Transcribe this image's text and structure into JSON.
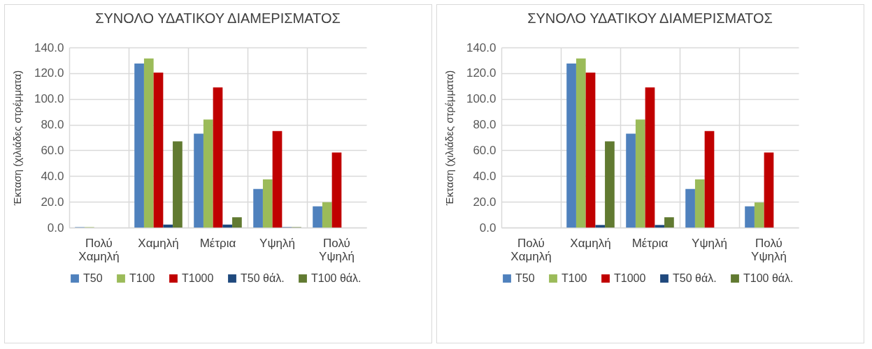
{
  "chart_data": [
    {
      "type": "bar",
      "title": "ΣΥΝΟΛΟ ΥΔΑΤΙΚΟΥ ΔΙΑΜΕΡΙΣΜΑΤΟΣ",
      "ylabel": "Έκταση (χιλιάδες στρέμματα)",
      "categories": [
        "Πολύ Χαμηλή",
        "Χαμηλή",
        "Μέτρια",
        "Υψηλή",
        "Πολύ Υψηλή"
      ],
      "series": [
        {
          "name": "T50",
          "color": "#4f81bd",
          "values": [
            0.3,
            127.5,
            73,
            30,
            16.5
          ]
        },
        {
          "name": "T100",
          "color": "#9bbb59",
          "values": [
            0.3,
            131.5,
            84,
            37.5,
            19.7
          ]
        },
        {
          "name": "T1000",
          "color": "#c00000",
          "values": [
            0,
            120.5,
            109,
            75,
            58.3
          ]
        },
        {
          "name": "T50 θάλ.",
          "color": "#1f497d",
          "values": [
            0,
            2.3,
            2.3,
            0.3,
            0
          ]
        },
        {
          "name": "T100 θάλ.",
          "color": "#617a31",
          "values": [
            0,
            67,
            8,
            0.3,
            0
          ]
        }
      ],
      "ylim": [
        0,
        140
      ],
      "yticks": [
        {
          "value": 0,
          "label": "0.0"
        },
        {
          "value": 20,
          "label": "20.0"
        },
        {
          "value": 40,
          "label": "40.0"
        },
        {
          "value": 60,
          "label": "60.0"
        },
        {
          "value": 80,
          "label": "80.0"
        },
        {
          "value": 100,
          "label": "100.0"
        },
        {
          "value": 120,
          "label": "120.0"
        },
        {
          "value": 140,
          "label": "140.0"
        }
      ],
      "grid": true,
      "legend": "bottom"
    },
    {
      "type": "bar",
      "title": "ΣΥΝΟΛΟ ΥΔΑΤΙΚΟΥ ΔΙΑΜΕΡΙΣΜΑΤΟΣ",
      "ylabel": "Έκταση (χιλιάδες στρέμματα)",
      "categories": [
        "Πολύ Χαμηλή",
        "Χαμηλή",
        "Μέτρια",
        "Υψηλή",
        "Πολύ Υψηλή"
      ],
      "series": [
        {
          "name": "T50",
          "color": "#4f81bd",
          "values": [
            0,
            127.5,
            73,
            30,
            16.5
          ]
        },
        {
          "name": "T100",
          "color": "#9bbb59",
          "values": [
            0,
            131.5,
            84,
            37.5,
            19.5
          ]
        },
        {
          "name": "T1000",
          "color": "#c00000",
          "values": [
            0,
            120.5,
            109,
            75,
            58.3
          ]
        },
        {
          "name": "T50 θάλ.",
          "color": "#1f497d",
          "values": [
            0,
            2,
            2,
            0,
            0
          ]
        },
        {
          "name": "T100 θάλ.",
          "color": "#617a31",
          "values": [
            0,
            67,
            8,
            0,
            0
          ]
        }
      ],
      "ylim": [
        0,
        140
      ],
      "yticks": [
        {
          "value": 0,
          "label": "0.0"
        },
        {
          "value": 20,
          "label": "20.0"
        },
        {
          "value": 40,
          "label": "40.0"
        },
        {
          "value": 60,
          "label": "60.0"
        },
        {
          "value": 80,
          "label": "80.0"
        },
        {
          "value": 100,
          "label": "100.0"
        },
        {
          "value": 120,
          "label": "120.0"
        },
        {
          "value": 140,
          "label": "140.0"
        }
      ],
      "grid": true,
      "legend": "bottom"
    }
  ]
}
